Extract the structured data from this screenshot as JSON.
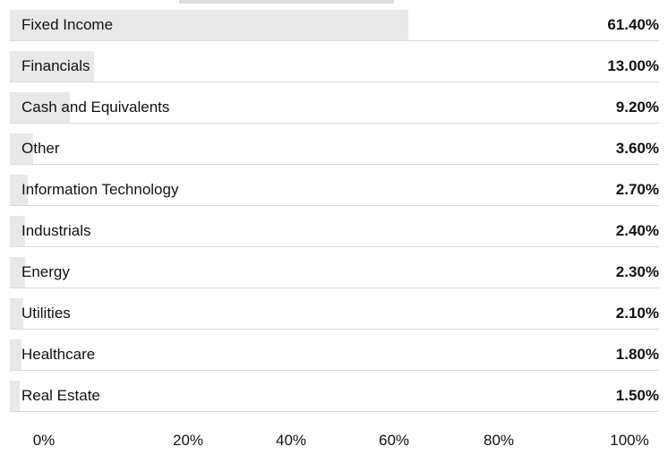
{
  "chart_data": {
    "type": "bar",
    "orientation": "horizontal",
    "categories": [
      "Fixed Income",
      "Financials",
      "Cash and Equivalents",
      "Other",
      "Information Technology",
      "Industrials",
      "Energy",
      "Utilities",
      "Healthcare",
      "Real Estate"
    ],
    "values": [
      61.4,
      13.0,
      9.2,
      3.6,
      2.7,
      2.4,
      2.3,
      2.1,
      1.8,
      1.5
    ],
    "value_labels": [
      "61.40%",
      "13.00%",
      "9.20%",
      "3.60%",
      "2.70%",
      "2.40%",
      "2.30%",
      "2.10%",
      "1.80%",
      "1.50%"
    ],
    "x_ticks": [
      "0%",
      "20%",
      "40%",
      "60%",
      "80%",
      "100%"
    ],
    "xlim": [
      0,
      100
    ],
    "grid": false,
    "legend": "none",
    "bar_color": "#e8e8e8"
  }
}
